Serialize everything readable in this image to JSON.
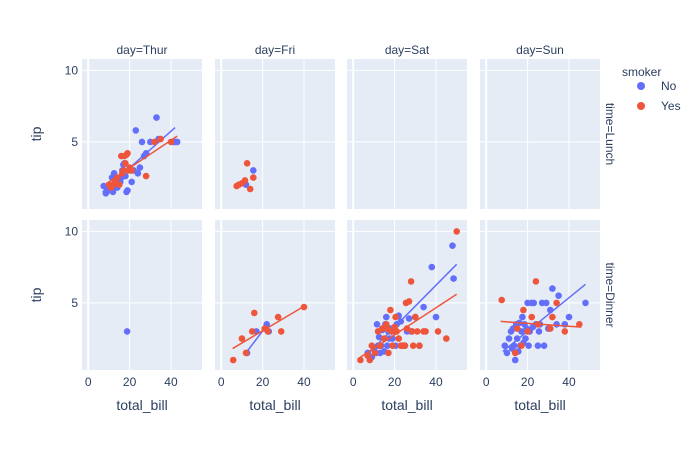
{
  "chart_data": {
    "type": "scatter",
    "title": "",
    "xlabel": "total_bill",
    "ylabel": "tip",
    "xlim": [
      -3,
      55
    ],
    "ylim": [
      0.3,
      10.8
    ],
    "x_ticks": [
      0,
      20,
      40
    ],
    "y_ticks": [
      5,
      10
    ],
    "columns": [
      "day=Thur",
      "day=Fri",
      "day=Sat",
      "day=Sun"
    ],
    "rows": [
      "time=Lunch",
      "time=Dinner"
    ],
    "legend": {
      "title": "smoker",
      "position": "top-right",
      "entries": [
        {
          "name": "No",
          "color": "#636efa"
        },
        {
          "name": "Yes",
          "color": "#EF553B"
        }
      ]
    },
    "panels": [
      {
        "row": "time=Lunch",
        "col": "day=Thur",
        "series": [
          {
            "name": "No",
            "x": [
              7.5,
              8.5,
              9,
              10,
              10.5,
              11,
              11.5,
              12,
              12.5,
              13,
              13.5,
              14,
              14.5,
              15,
              15.5,
              16,
              16.5,
              17,
              17.5,
              18,
              18.5,
              19,
              20,
              21,
              22,
              23,
              24,
              25,
              26,
              27,
              28,
              30,
              33,
              34,
              41,
              42,
              43
            ],
            "y": [
              1.9,
              1.4,
              1.8,
              1.6,
              2.0,
              1.7,
              2.5,
              1.5,
              2.8,
              1.9,
              2.1,
              1.8,
              2.3,
              2.0,
              2.2,
              2.5,
              3.0,
              3.4,
              3.5,
              2.6,
              1.5,
              1.6,
              3.0,
              2.2,
              3.0,
              5.8,
              2.8,
              3.2,
              5.0,
              4.0,
              4.2,
              5.0,
              6.7,
              5.2,
              5.0,
              5.0,
              5.0
            ],
            "trend": [
              [
                7,
                1.5
              ],
              [
                42,
                6.0
              ]
            ]
          },
          {
            "name": "Yes",
            "x": [
              10,
              11,
              12,
              13,
              14,
              15,
              16,
              16.5,
              17,
              17.5,
              18,
              18.5,
              19,
              19.5,
              20,
              21,
              28,
              32,
              35,
              40
            ],
            "y": [
              2.0,
              1.8,
              2.0,
              2.2,
              2.5,
              2.0,
              4.0,
              2.8,
              3.0,
              4.0,
              3.5,
              4.1,
              4.2,
              3.0,
              3.2,
              3.0,
              2.6,
              5.0,
              5.2,
              5.0
            ],
            "trend": [
              [
                10,
                2.2
              ],
              [
                43,
                5.4
              ]
            ]
          }
        ]
      },
      {
        "row": "time=Lunch",
        "col": "day=Fri",
        "series": [
          {
            "name": "No",
            "x": [
              12,
              15.5
            ],
            "y": [
              2.0,
              3.0
            ],
            "trend": []
          },
          {
            "name": "Yes",
            "x": [
              7.5,
              8.5,
              10,
              11.5,
              12.5,
              14,
              15.5
            ],
            "y": [
              1.9,
              2.0,
              2.1,
              2.3,
              3.5,
              1.7,
              2.5
            ],
            "trend": []
          }
        ]
      },
      {
        "row": "time=Lunch",
        "col": "day=Sat",
        "series": []
      },
      {
        "row": "time=Lunch",
        "col": "day=Sun",
        "series": []
      },
      {
        "row": "time=Dinner",
        "col": "day=Thur",
        "series": [
          {
            "name": "No",
            "x": [
              18.8
            ],
            "y": [
              3.0
            ],
            "trend": []
          }
        ]
      },
      {
        "row": "time=Dinner",
        "col": "day=Fri",
        "series": [
          {
            "name": "No",
            "x": [
              12.5,
              17,
              22,
              23
            ],
            "y": [
              1.5,
              3.0,
              3.5,
              3.0
            ],
            "trend": [
              [
                12,
                1.5
              ],
              [
                23,
                3.6
              ]
            ]
          },
          {
            "name": "Yes",
            "x": [
              5.8,
              10,
              12,
              15,
              16,
              21,
              22.5,
              27.5,
              29,
              40
            ],
            "y": [
              1.0,
              2.5,
              1.5,
              3.0,
              4.3,
              3.2,
              3.0,
              4.0,
              3.0,
              4.7
            ],
            "trend": [
              [
                5.5,
                1.8
              ],
              [
                40.5,
                4.8
              ]
            ]
          }
        ]
      },
      {
        "row": "time=Dinner",
        "col": "day=Sat",
        "series": [
          {
            "name": "No",
            "x": [
              7,
              9,
              10,
              11,
              11.5,
              12,
              12.5,
              13,
              13.5,
              14,
              15,
              15.5,
              16,
              16.5,
              17,
              17.5,
              18,
              18.5,
              19,
              20,
              20.5,
              21,
              22,
              23,
              24,
              25,
              26,
              27,
              28,
              30,
              32,
              34,
              38,
              40,
              48,
              48.5
            ],
            "y": [
              1.5,
              1.2,
              1.8,
              1.5,
              3.5,
              2.0,
              2.6,
              1.5,
              2.0,
              3.1,
              1.6,
              3.5,
              4.0,
              2.0,
              3.0,
              2.5,
              3.2,
              3.0,
              2.5,
              3.0,
              2.0,
              3.5,
              4.1,
              3.7,
              2.0,
              2.0,
              3.0,
              3.9,
              3.0,
              4.0,
              2.0,
              4.7,
              7.5,
              4.0,
              9.0,
              6.7
            ],
            "trend": [
              [
                7,
                1.4
              ],
              [
                50,
                7.7
              ]
            ]
          },
          {
            "name": "Yes",
            "x": [
              3.5,
              7,
              8,
              9,
              10.5,
              12,
              13,
              14,
              15,
              16,
              16.5,
              17,
              18,
              18.5,
              19,
              20,
              20.5,
              21,
              22,
              23,
              24,
              25,
              25.5,
              26,
              27,
              28,
              28.5,
              29,
              30,
              31,
              32,
              34,
              35,
              41,
              45,
              50
            ],
            "y": [
              1.0,
              1.3,
              1.0,
              2.0,
              1.5,
              3.0,
              2.0,
              3.2,
              2.5,
              3.5,
              3.2,
              1.5,
              4.5,
              3.0,
              2.0,
              3.3,
              4.0,
              3.0,
              2.5,
              2.0,
              2.0,
              2.0,
              5.0,
              3.2,
              5.1,
              6.5,
              3.0,
              2.0,
              4.0,
              3.0,
              2.0,
              3.0,
              3.0,
              3.0,
              2.5,
              10.0
            ],
            "trend": [
              [
                3.5,
                1.2
              ],
              [
                50,
                5.6
              ]
            ]
          }
        ]
      },
      {
        "row": "time=Dinner",
        "col": "day=Sun",
        "series": [
          {
            "name": "No",
            "x": [
              9,
              10,
              11,
              12,
              12.5,
              13,
              13.5,
              14,
              14.5,
              15,
              15.5,
              16,
              16.5,
              17,
              17.5,
              18,
              18.5,
              19,
              19.5,
              20,
              20.5,
              21,
              22,
              22.5,
              23,
              24,
              25,
              25.5,
              26,
              27,
              28,
              29,
              30,
              31,
              32,
              34,
              35,
              38,
              40,
              48
            ],
            "y": [
              2.0,
              1.5,
              2.5,
              3.0,
              1.8,
              3.2,
              2.0,
              1.0,
              3.5,
              2.5,
              1.6,
              3.6,
              2.0,
              3.0,
              4.0,
              2.2,
              3.5,
              2.5,
              3.2,
              5.0,
              2.0,
              3.0,
              5.0,
              3.3,
              5.0,
              3.5,
              2.0,
              3.0,
              3.5,
              5.0,
              2.0,
              5.0,
              3.2,
              4.5,
              6.0,
              3.5,
              5.5,
              3.5,
              4.0,
              5.0
            ],
            "trend": [
              [
                8,
                1.6
              ],
              [
                48,
                6.3
              ]
            ]
          },
          {
            "name": "Yes",
            "x": [
              7.5,
              14,
              15,
              17,
              18,
              20,
              22,
              24,
              25,
              31,
              32,
              34,
              38,
              45
            ],
            "y": [
              5.2,
              1.5,
              3.2,
              2.0,
              4.5,
              3.0,
              4.0,
              6.5,
              3.5,
              3.2,
              4.0,
              5.0,
              3.0,
              3.5
            ],
            "trend": [
              [
                7,
                3.7
              ],
              [
                46,
                3.3
              ]
            ]
          }
        ]
      }
    ]
  }
}
